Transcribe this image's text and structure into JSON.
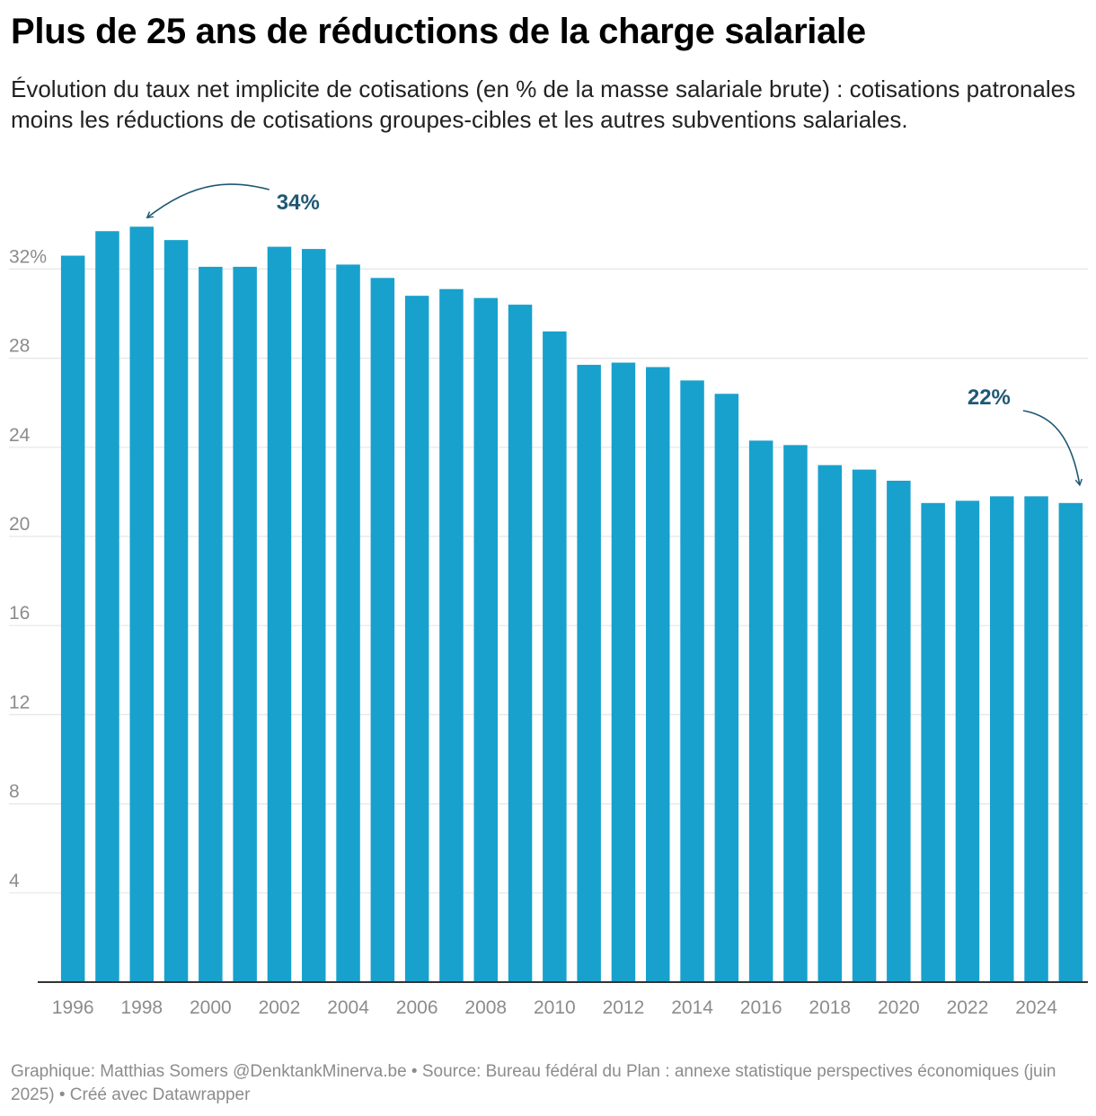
{
  "header": {
    "title": "Plus de 25 ans de réductions de la charge salariale",
    "subtitle": "Évolution du taux net implicite de cotisations (en % de la masse salariale brute) : cotisations patronales moins les réductions de cotisations groupes-cibles et les autres subventions salariales."
  },
  "footer": {
    "text": "Graphique: Matthias Somers @DenktankMinerva.be • Source: Bureau fédéral du Plan : annexe statistique perspectives économiques (juin 2025) • Créé avec Datawrapper"
  },
  "chart_data": {
    "type": "bar",
    "title": "Plus de 25 ans de réductions de la charge salariale",
    "xlabel": "",
    "ylabel": "",
    "ylim": [
      0,
      34
    ],
    "yticks": [
      4,
      8,
      12,
      16,
      20,
      24,
      28,
      32
    ],
    "ytick_labels": [
      "4",
      "8",
      "12",
      "16",
      "20",
      "24",
      "28",
      "32%"
    ],
    "xtick_labels": [
      "1996",
      "1998",
      "2000",
      "2002",
      "2004",
      "2006",
      "2008",
      "2010",
      "2012",
      "2014",
      "2016",
      "2018",
      "2020",
      "2022",
      "2024"
    ],
    "grid": "horizontal",
    "categories": [
      1996,
      1997,
      1998,
      1999,
      2000,
      2001,
      2002,
      2003,
      2004,
      2005,
      2006,
      2007,
      2008,
      2009,
      2010,
      2011,
      2012,
      2013,
      2014,
      2015,
      2016,
      2017,
      2018,
      2019,
      2020,
      2021,
      2022,
      2023,
      2024,
      2025
    ],
    "values": [
      32.6,
      33.7,
      33.9,
      33.3,
      32.1,
      32.1,
      33.0,
      32.9,
      32.2,
      31.6,
      30.8,
      31.1,
      30.7,
      30.4,
      29.2,
      27.7,
      27.8,
      27.6,
      27.0,
      26.4,
      24.3,
      24.1,
      23.2,
      23.0,
      22.5,
      21.5,
      21.6,
      21.8,
      21.8,
      21.5
    ],
    "colors": {
      "bar": "#18a1cd",
      "annotation": "#1f5873",
      "axis": "#333333",
      "grid": "#e6e6e6"
    },
    "annotations": [
      {
        "label": "34%",
        "year": 1998
      },
      {
        "label": "22%",
        "year": 2025
      }
    ]
  }
}
